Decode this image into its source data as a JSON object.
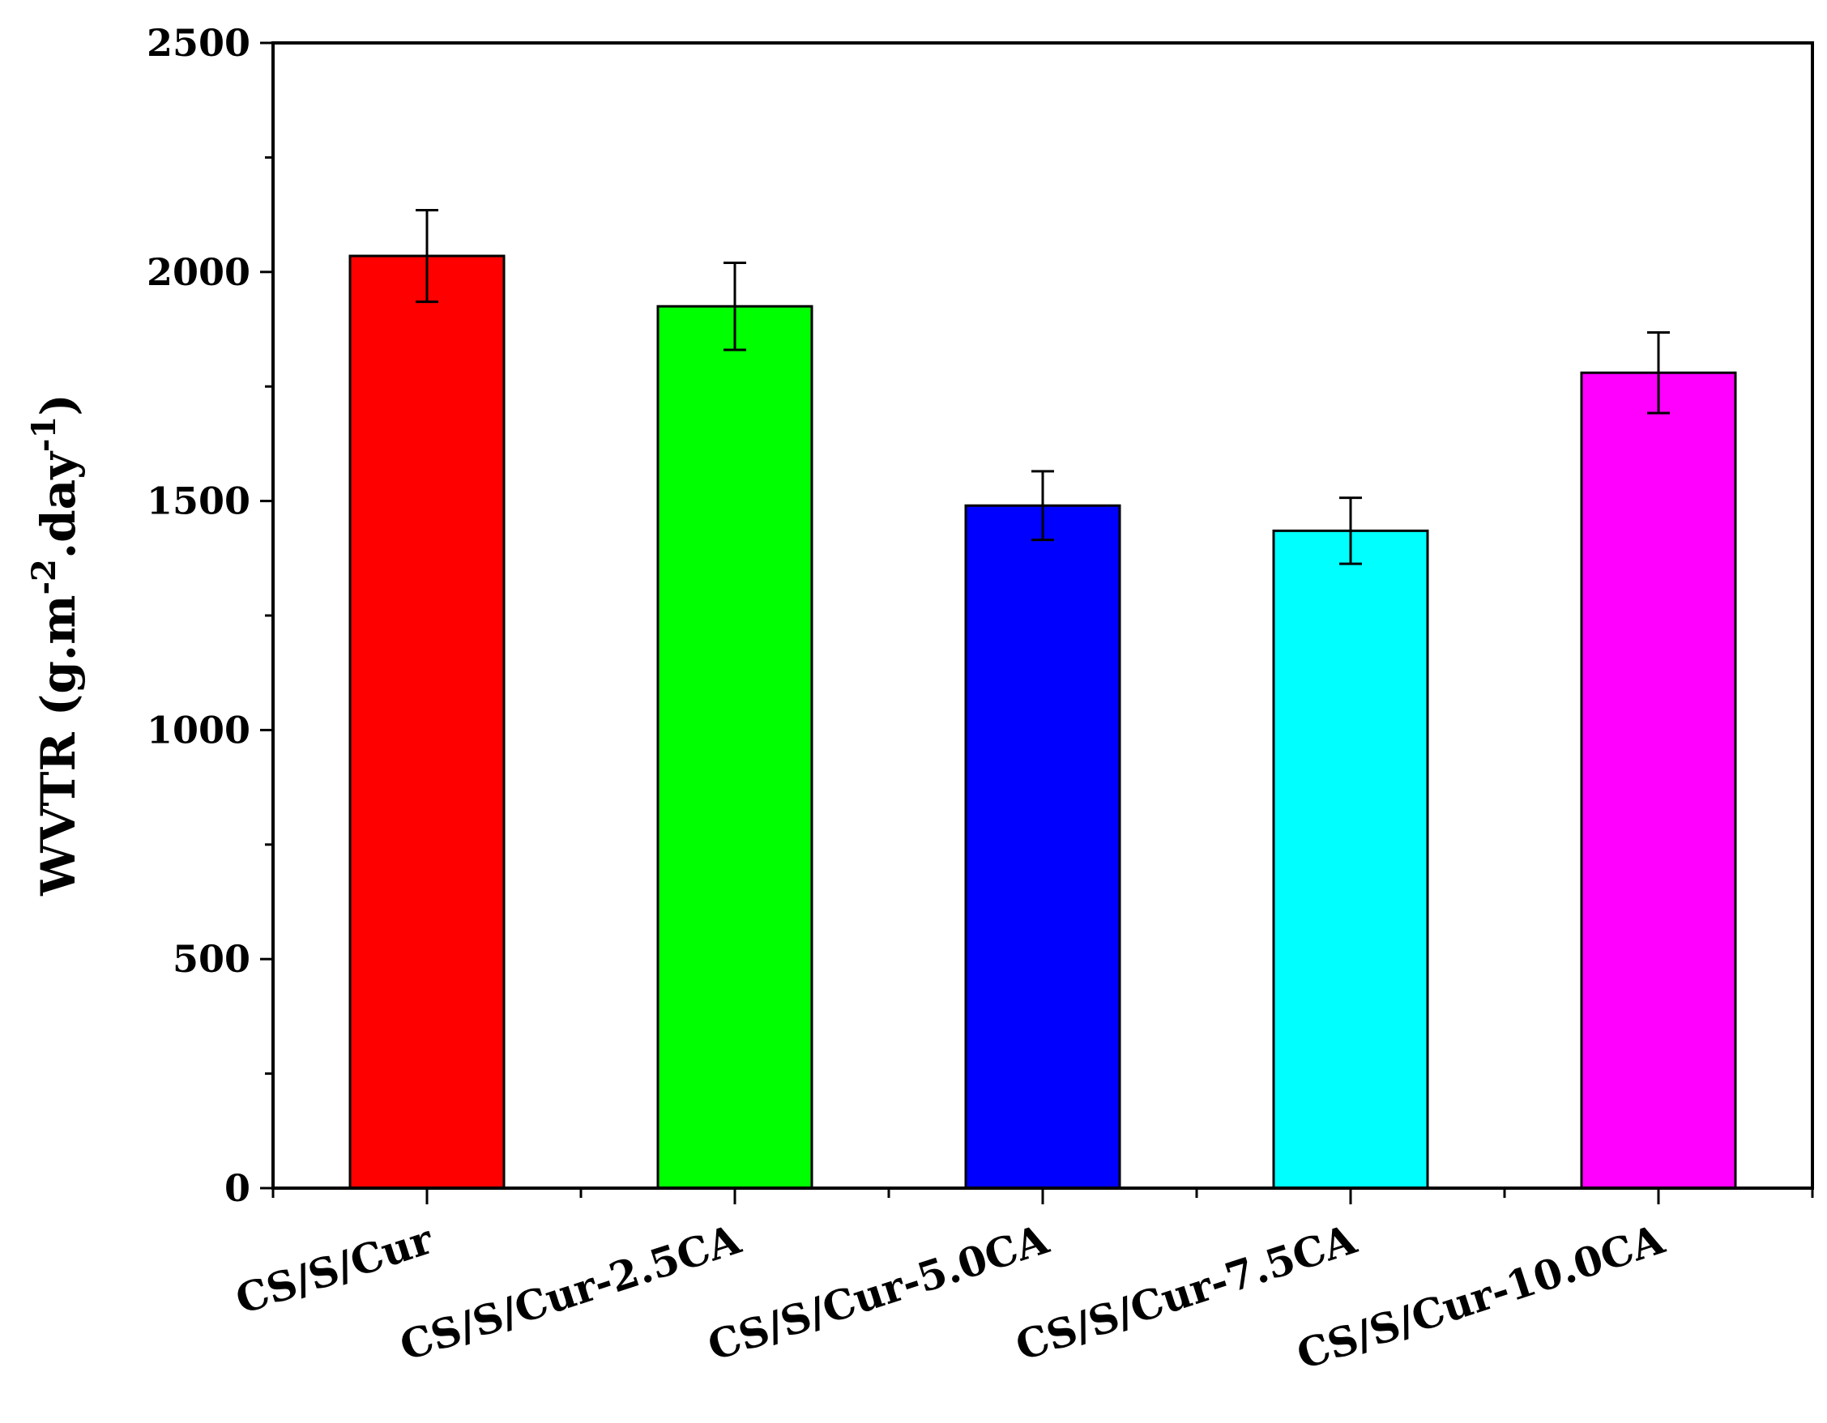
{
  "chart_data": {
    "type": "bar",
    "categories": [
      "CS/S/Cur",
      "CS/S/Cur-2.5CA",
      "CS/S/Cur-5.0CA",
      "CS/S/Cur-7.5CA",
      "CS/S/Cur-10.0CA"
    ],
    "values": [
      2035,
      1925,
      1490,
      1435,
      1780
    ],
    "errors": [
      100,
      95,
      75,
      72,
      88
    ],
    "colors": [
      "#ff0000",
      "#00ff00",
      "#0000ff",
      "#00ffff",
      "#ff00ff"
    ],
    "title": "",
    "xlabel": "",
    "ylabel": {
      "main": "WVTR (g.m",
      "sup1": "-2",
      "mid": ".day",
      "sup2": "-1",
      "end": ")"
    },
    "ylim": [
      0,
      2500
    ],
    "yticks": [
      "0",
      "500",
      "1000",
      "1500",
      "2000",
      "2500"
    ],
    "ytick_values": [
      0,
      500,
      1000,
      1500,
      2000,
      2500
    ],
    "grid": false,
    "legend": "none"
  }
}
